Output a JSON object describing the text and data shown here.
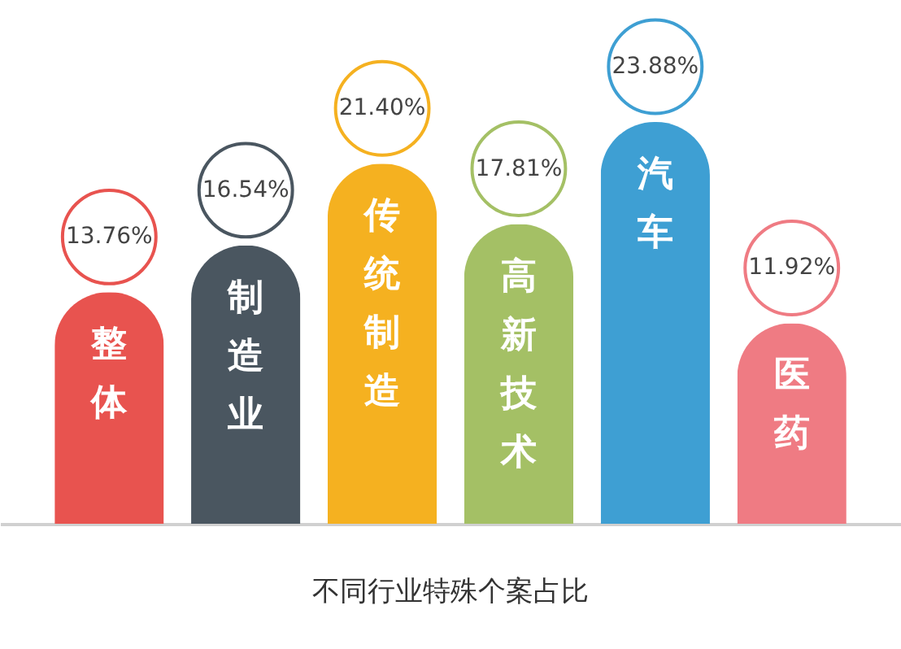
{
  "chart_data": {
    "type": "bar",
    "title": "不同行业特殊个案占比",
    "categories": [
      "整体",
      "制造业",
      "传统制造",
      "高新技术",
      "汽车",
      "医药"
    ],
    "values": [
      13.76,
      16.54,
      21.4,
      17.81,
      23.88,
      11.92
    ],
    "value_labels": [
      "13.76%",
      "16.54%",
      "21.40%",
      "17.81%",
      "23.88%",
      "11.92%"
    ],
    "colors": [
      "#e8534f",
      "#4a5660",
      "#f5b120",
      "#a4c065",
      "#3e9fd3",
      "#ef7b83"
    ]
  }
}
